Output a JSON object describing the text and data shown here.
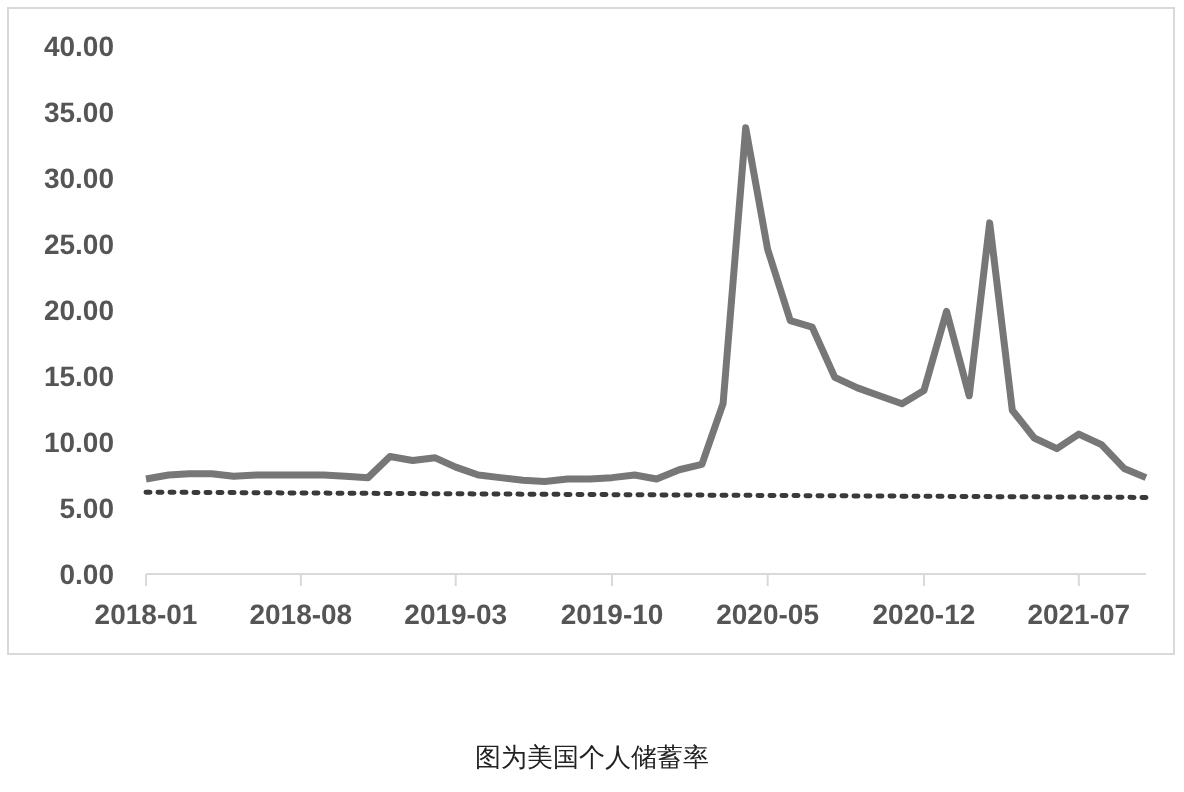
{
  "chart_data": {
    "type": "line",
    "x": [
      "2018-01",
      "2018-02",
      "2018-03",
      "2018-04",
      "2018-05",
      "2018-06",
      "2018-07",
      "2018-08",
      "2018-09",
      "2018-10",
      "2018-11",
      "2018-12",
      "2019-01",
      "2019-02",
      "2019-03",
      "2019-04",
      "2019-05",
      "2019-06",
      "2019-07",
      "2019-08",
      "2019-09",
      "2019-10",
      "2019-11",
      "2019-12",
      "2020-01",
      "2020-02",
      "2020-03",
      "2020-04",
      "2020-05",
      "2020-06",
      "2020-07",
      "2020-08",
      "2020-09",
      "2020-10",
      "2020-11",
      "2020-12",
      "2021-01",
      "2021-02",
      "2021-03",
      "2021-04",
      "2021-05",
      "2021-06",
      "2021-07",
      "2021-08",
      "2021-09",
      "2021-10"
    ],
    "series": [
      {
        "color": "#777777",
        "line_style": "solid",
        "values": [
          7.2,
          7.5,
          7.6,
          7.6,
          7.4,
          7.5,
          7.5,
          7.5,
          7.5,
          7.4,
          7.3,
          8.9,
          8.6,
          8.8,
          8.1,
          7.5,
          7.3,
          7.1,
          7.0,
          7.2,
          7.2,
          7.3,
          7.5,
          7.2,
          7.9,
          8.3,
          12.9,
          33.8,
          24.6,
          19.2,
          18.7,
          14.9,
          14.1,
          13.5,
          12.9,
          13.9,
          19.9,
          13.5,
          26.6,
          12.4,
          10.3,
          9.5,
          10.6,
          9.8,
          8.0,
          7.3
        ]
      },
      {
        "color": "#3a3a3a",
        "line_style": "dotted",
        "x": [
          "2018-01",
          "2021-10"
        ],
        "values": [
          6.2,
          5.8
        ]
      }
    ],
    "xlim": [
      "2018-01",
      "2021-10"
    ],
    "xticks": [
      {
        "value": "2018-01",
        "label": "2018-01"
      },
      {
        "value": "2018-08",
        "label": "2018-08"
      },
      {
        "value": "2019-03",
        "label": "2019-03"
      },
      {
        "value": "2019-10",
        "label": "2019-10"
      },
      {
        "value": "2020-05",
        "label": "2020-05"
      },
      {
        "value": "2020-12",
        "label": "2020-12"
      },
      {
        "value": "2021-07",
        "label": "2021-07"
      }
    ],
    "ylim": [
      0,
      40
    ],
    "yticks": [
      {
        "value": 0,
        "label": "0.00"
      },
      {
        "value": 5,
        "label": "5.00"
      },
      {
        "value": 10,
        "label": "10.00"
      },
      {
        "value": 15,
        "label": "15.00"
      },
      {
        "value": 20,
        "label": "20.00"
      },
      {
        "value": 25,
        "label": "25.00"
      },
      {
        "value": 30,
        "label": "30.00"
      },
      {
        "value": 35,
        "label": "35.00"
      },
      {
        "value": 40,
        "label": "40.00"
      }
    ],
    "marker": "none",
    "annotations": [
      "图为美国个人储蓄率"
    ]
  }
}
